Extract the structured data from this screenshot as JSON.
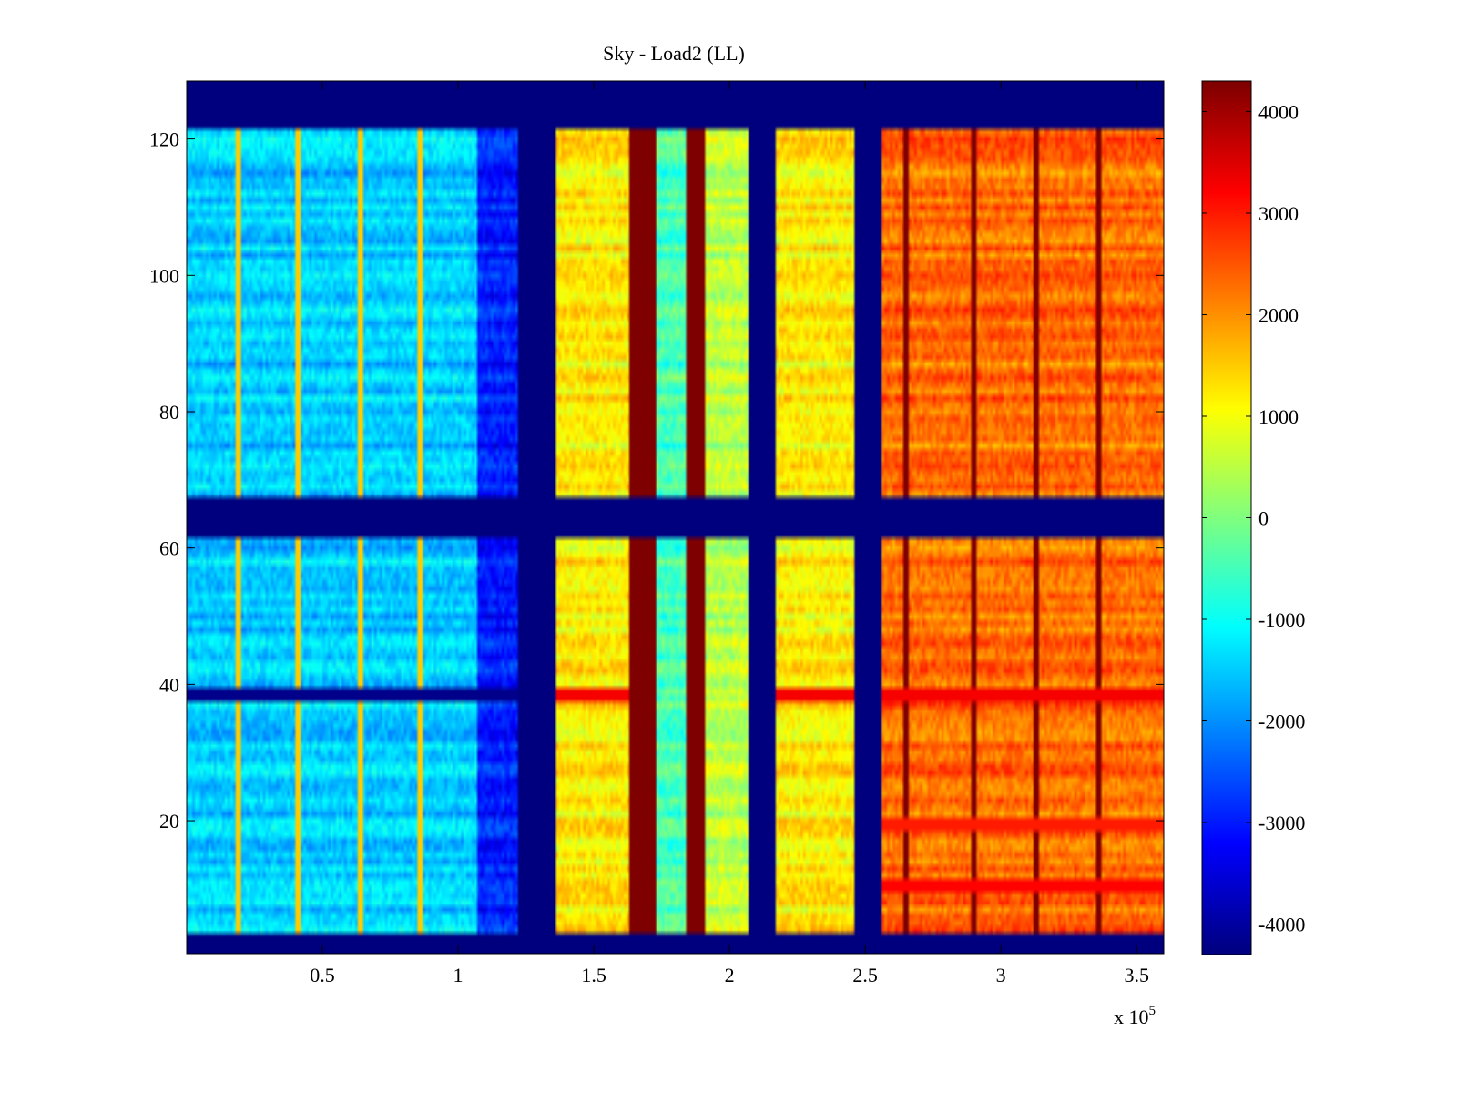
{
  "chart_data": {
    "type": "heatmap",
    "title": "Sky - Load2 (LL)",
    "xlabel": "",
    "ylabel": "",
    "x_multiplier_label": {
      "base": "x 10",
      "exponent": "5"
    },
    "xlim": [
      0,
      3.6
    ],
    "ylim": [
      0.5,
      128.5
    ],
    "x_ticks": [
      0.5,
      1,
      1.5,
      2,
      2.5,
      3,
      3.5
    ],
    "x_tick_labels": [
      "0.5",
      "1",
      "1.5",
      "2",
      "2.5",
      "3",
      "3.5"
    ],
    "y_ticks": [
      20,
      40,
      60,
      80,
      100,
      120
    ],
    "y_tick_labels": [
      "20",
      "40",
      "60",
      "80",
      "100",
      "120"
    ],
    "colorbar": {
      "colormap": "jet",
      "clim": [
        -4300,
        4300
      ],
      "ticks": [
        4000,
        3000,
        2000,
        1000,
        0,
        -1000,
        -2000,
        -3000,
        -4000
      ],
      "tick_labels": [
        "4000",
        "3000",
        "2000",
        "1000",
        "0",
        "-1000",
        "-2000",
        "-3000",
        "-4000"
      ]
    },
    "flagged_rows": {
      "ranges": [
        [
          1,
          3
        ],
        [
          62,
          67
        ],
        [
          122,
          128
        ]
      ],
      "value": -4300
    },
    "columns": [
      {
        "x": [
          0.0,
          1.07
        ],
        "value": -1500
      },
      {
        "x": [
          1.07,
          1.22
        ],
        "value": -3000
      },
      {
        "x": [
          1.22,
          1.36
        ],
        "value": -4300
      },
      {
        "x": [
          1.36,
          1.63
        ],
        "value": 1200
      },
      {
        "x": [
          1.63,
          1.73
        ],
        "value": 4300
      },
      {
        "x": [
          1.73,
          1.84
        ],
        "value": -500
      },
      {
        "x": [
          1.84,
          1.91
        ],
        "value": 4300
      },
      {
        "x": [
          1.91,
          2.07
        ],
        "value": 500
      },
      {
        "x": [
          2.07,
          2.17
        ],
        "value": -4300
      },
      {
        "x": [
          2.17,
          2.46
        ],
        "value": 1200
      },
      {
        "x": [
          2.46,
          2.56
        ],
        "value": -4300
      },
      {
        "x": [
          2.56,
          3.6
        ],
        "value": 2300
      }
    ],
    "streaks": [
      {
        "x": 0.19,
        "value": 1500
      },
      {
        "x": 0.41,
        "value": 1500
      },
      {
        "x": 0.64,
        "value": 1500
      },
      {
        "x": 0.86,
        "value": 1500
      },
      {
        "x": 2.65,
        "value": 4300
      },
      {
        "x": 2.9,
        "value": 4300
      },
      {
        "x": 3.13,
        "value": 4300
      },
      {
        "x": 3.36,
        "value": 4300
      }
    ],
    "row_features": [
      {
        "rows": [
          38,
          39
        ],
        "region": "low",
        "value": -4200
      },
      {
        "rows": [
          38,
          39
        ],
        "region": "high",
        "value": 3300
      },
      {
        "rows": [
          10,
          11
        ],
        "region": "high",
        "value": 3200
      },
      {
        "rows": [
          19,
          20
        ],
        "region": "high",
        "value": 3000
      }
    ]
  }
}
